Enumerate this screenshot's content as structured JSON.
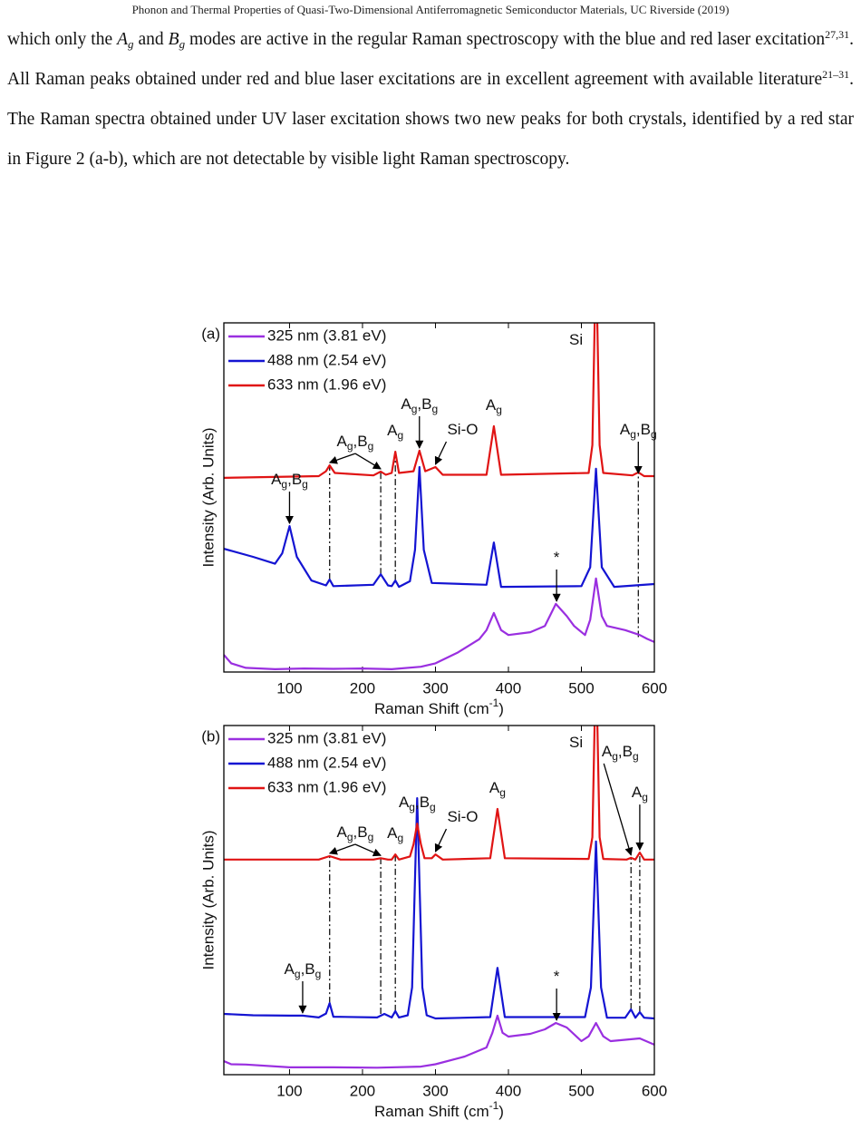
{
  "header": "Phonon and Thermal Properties of Quasi-Two-Dimensional Antiferromagnetic Semiconductor Materials, UC Riverside (2019)",
  "paragraph": {
    "runs": [
      {
        "text": "which only the "
      },
      {
        "italic": "A"
      },
      {
        "sub": "g"
      },
      {
        "text": " and "
      },
      {
        "italic": "B"
      },
      {
        "sub": "g"
      },
      {
        "text": " modes are active in the regular Raman spectroscopy with the blue and red laser excitation"
      },
      {
        "sup": "27,31"
      },
      {
        "text": ". All Raman peaks obtained under red and blue laser excitations are in excellent agreement with available literature"
      },
      {
        "sup": "21–31"
      },
      {
        "text": ". The Raman spectra obtained under UV laser excitation shows two new peaks for both crystals, identified by a red star in Figure 2 (a-b), which are not detectable by visible light Raman spectroscopy."
      }
    ]
  },
  "chart_data": [
    {
      "type": "line",
      "panel": "(a)",
      "xlabel": [
        {
          "base": "Raman Shift (cm",
          "sup": "-1"
        },
        {
          "base": ")"
        }
      ],
      "ylabel": "Intensity (Arb. Units)",
      "xlim": [
        10,
        600
      ],
      "ylim": [
        0,
        100
      ],
      "xticks": [
        100,
        200,
        300,
        400,
        500,
        600
      ],
      "legend": "upper left",
      "series": [
        {
          "name": "325 nm (3.81 eV)",
          "color": "#9a2fe0",
          "x": [
            10,
            20,
            40,
            80,
            120,
            160,
            200,
            240,
            280,
            300,
            330,
            360,
            370,
            380,
            390,
            400,
            430,
            450,
            465,
            480,
            490,
            505,
            512,
            520,
            528,
            535,
            560,
            580,
            590,
            600
          ],
          "values": [
            4.9,
            2.5,
            1.2,
            0.8,
            1,
            0.9,
            1,
            0.8,
            1.5,
            2.5,
            5.5,
            9.4,
            12,
            16.9,
            12,
            10.6,
            11.4,
            13.2,
            19.5,
            16,
            13.2,
            10.6,
            15,
            26.8,
            16,
            13.2,
            12,
            10.6,
            9.5,
            8.6
          ]
        },
        {
          "name": "488 nm (2.54 eV)",
          "color": "#1414d2",
          "x": [
            10,
            50,
            80,
            90,
            100,
            110,
            130,
            150,
            155,
            160,
            215,
            225,
            235,
            240,
            245,
            250,
            265,
            272,
            278,
            284,
            295,
            370,
            380,
            390,
            500,
            512,
            520,
            528,
            545,
            600
          ],
          "values": [
            35.3,
            33,
            31,
            34,
            41.8,
            33,
            26.2,
            24.8,
            26.5,
            24.6,
            25,
            28,
            24.8,
            24.6,
            26.2,
            24.4,
            26,
            35,
            58.7,
            35,
            25.5,
            25,
            37.1,
            24.4,
            24.6,
            30,
            58.2,
            30,
            24.4,
            25.2
          ]
        },
        {
          "name": "633 nm (1.96 eV)",
          "color": "#e01414",
          "x": [
            10,
            140,
            150,
            155,
            162,
            215,
            225,
            232,
            240,
            245,
            250,
            270,
            278,
            286,
            300,
            310,
            370,
            380,
            390,
            510,
            515,
            520,
            525,
            530,
            570,
            578,
            586,
            600
          ],
          "values": [
            55.6,
            56.1,
            57.5,
            59.2,
            57,
            56.3,
            57.4,
            56.5,
            57,
            63.1,
            57,
            57.5,
            63.4,
            57.5,
            58.7,
            56.5,
            56.5,
            70.4,
            56.5,
            57,
            65,
            120,
            65,
            57,
            56.3,
            57.2,
            56.1,
            56.1
          ]
        }
      ],
      "guides": [
        {
          "x": 155,
          "y": [
            26.5,
            59.2
          ]
        },
        {
          "x": 225,
          "y": [
            28,
            57.4
          ]
        },
        {
          "x": 245,
          "y": [
            26.2,
            63.1
          ]
        },
        {
          "x": 578,
          "y": [
            10,
            56.1
          ]
        }
      ],
      "annotations": [
        {
          "label": [
            {
              "base": "A",
              "sub": "g"
            },
            {
              "base": ",B",
              "sub": "g"
            }
          ],
          "xy": [
            [
              155,
              59.2
            ],
            [
              225,
              57.4
            ]
          ],
          "arrow": true
        },
        {
          "label": [
            {
              "base": "A",
              "sub": "g"
            }
          ],
          "xy": [
            [
              245,
              63.1
            ]
          ],
          "arrow": false
        },
        {
          "label": [
            {
              "base": "A",
              "sub": "g"
            },
            {
              "base": ",B",
              "sub": "g"
            }
          ],
          "xy": [
            [
              278,
              63.4
            ]
          ],
          "arrow": true
        },
        {
          "label": [
            {
              "base": "Si-O"
            }
          ],
          "xy": [
            [
              300,
              58.7
            ]
          ],
          "arrow": true
        },
        {
          "label": [
            {
              "base": "A",
              "sub": "g"
            }
          ],
          "xy": [
            [
              380,
              70.4
            ]
          ],
          "arrow": false
        },
        {
          "label": [
            {
              "base": "Si"
            }
          ],
          "xy": [
            [
              520,
              120
            ]
          ],
          "arrow": false
        },
        {
          "label": [
            {
              "base": "A",
              "sub": "g"
            },
            {
              "base": ",B",
              "sub": "g"
            }
          ],
          "xy": [
            [
              578,
              56.1
            ]
          ],
          "arrow": true
        },
        {
          "label": [
            {
              "base": "A",
              "sub": "g"
            },
            {
              "base": ",B",
              "sub": "g"
            }
          ],
          "xy": [
            [
              100,
              41.8
            ]
          ],
          "arrow": true
        },
        {
          "label": [
            {
              "base": "*"
            }
          ],
          "xy": [
            [
              466,
              19.5
            ]
          ],
          "arrow": true,
          "color": "#e01414"
        }
      ]
    },
    {
      "type": "line",
      "panel": "(b)",
      "xlabel": [
        {
          "base": "Raman Shift (cm",
          "sup": "-1"
        },
        {
          "base": ")"
        }
      ],
      "ylabel": "Intensity (Arb. Units)",
      "xlim": [
        10,
        600
      ],
      "ylim": [
        0,
        100
      ],
      "xticks": [
        100,
        200,
        300,
        400,
        500,
        600
      ],
      "legend": "upper left",
      "series": [
        {
          "name": "325 nm (3.81 eV)",
          "color": "#9a2fe0",
          "x": [
            10,
            20,
            40,
            100,
            160,
            220,
            280,
            300,
            340,
            370,
            378,
            385,
            392,
            400,
            430,
            450,
            465,
            480,
            500,
            510,
            520,
            530,
            540,
            560,
            580,
            600
          ],
          "values": [
            3.9,
            3,
            2.9,
            2.1,
            2.1,
            2,
            2.3,
            3,
            5.2,
            7.8,
            12,
            16.9,
            12,
            10.9,
            11.7,
            13,
            14.8,
            13.5,
            9.6,
            11,
            14.8,
            11,
            9.6,
            10,
            10.4,
            8.6
          ]
        },
        {
          "name": "488 nm (2.54 eV)",
          "color": "#1414d2",
          "x": [
            10,
            50,
            100,
            118,
            140,
            150,
            155,
            160,
            220,
            230,
            240,
            245,
            250,
            262,
            268,
            275,
            282,
            288,
            300,
            375,
            385,
            395,
            505,
            513,
            520,
            527,
            535,
            560,
            568,
            574,
            580,
            586,
            600
          ],
          "values": [
            17.4,
            17,
            16.9,
            16.9,
            16.4,
            17.5,
            20.5,
            16.6,
            16.4,
            17.4,
            16.4,
            18.2,
            16.4,
            17,
            25,
            79.2,
            25,
            17,
            16.1,
            16.5,
            30.6,
            16.5,
            16.5,
            25,
            66.8,
            25,
            16.3,
            16.3,
            18.7,
            16.3,
            17.9,
            16.3,
            16.1
          ]
        },
        {
          "name": "633 nm (1.96 eV)",
          "color": "#e01414",
          "x": [
            10,
            140,
            155,
            170,
            215,
            225,
            235,
            240,
            245,
            250,
            265,
            270,
            275,
            280,
            285,
            295,
            300,
            310,
            375,
            385,
            395,
            510,
            515,
            520,
            525,
            530,
            562,
            568,
            574,
            580,
            586,
            600
          ],
          "values": [
            61.6,
            61.6,
            62.6,
            61.6,
            61.6,
            62,
            61.6,
            61.6,
            63.1,
            61.6,
            62.5,
            66,
            71.9,
            66,
            62,
            62,
            63.1,
            61.6,
            62,
            76.1,
            62,
            61.8,
            68,
            120,
            68,
            61.8,
            61.6,
            62.1,
            61.6,
            63.6,
            61.6,
            61.6
          ]
        }
      ],
      "guides": [
        {
          "x": 155,
          "y": [
            20.5,
            62.6
          ]
        },
        {
          "x": 225,
          "y": [
            17.4,
            62
          ]
        },
        {
          "x": 245,
          "y": [
            18.2,
            63.1
          ]
        },
        {
          "x": 568,
          "y": [
            18.7,
            62.1
          ]
        },
        {
          "x": 580,
          "y": [
            17.9,
            63.6
          ]
        }
      ],
      "annotations": [
        {
          "label": [
            {
              "base": "A",
              "sub": "g"
            },
            {
              "base": ",B",
              "sub": "g"
            }
          ],
          "xy": [
            [
              155,
              62.6
            ],
            [
              225,
              62
            ]
          ],
          "arrow": true
        },
        {
          "label": [
            {
              "base": "A",
              "sub": "g"
            }
          ],
          "xy": [
            [
              245,
              63.1
            ]
          ],
          "arrow": false
        },
        {
          "label": [
            {
              "base": "A",
              "sub": "g"
            },
            {
              "base": ",B",
              "sub": "g"
            }
          ],
          "xy": [
            [
              275,
              71.9
            ]
          ],
          "arrow": false
        },
        {
          "label": [
            {
              "base": "Si-O"
            }
          ],
          "xy": [
            [
              300,
              63.1
            ]
          ],
          "arrow": true
        },
        {
          "label": [
            {
              "base": "A",
              "sub": "g"
            }
          ],
          "xy": [
            [
              385,
              76.1
            ]
          ],
          "arrow": false
        },
        {
          "label": [
            {
              "base": "Si"
            }
          ],
          "xy": [
            [
              520,
              120
            ]
          ],
          "arrow": false
        },
        {
          "label": [
            {
              "base": "A",
              "sub": "g"
            },
            {
              "base": ",B",
              "sub": "g"
            }
          ],
          "xy": [
            [
              568,
              62.1
            ]
          ],
          "arrow": true
        },
        {
          "label": [
            {
              "base": "A",
              "sub": "g"
            }
          ],
          "xy": [
            [
              580,
              63.6
            ]
          ],
          "arrow": true
        },
        {
          "label": [
            {
              "base": "A",
              "sub": "g"
            },
            {
              "base": ",B",
              "sub": "g"
            }
          ],
          "xy": [
            [
              118,
              16.9
            ]
          ],
          "arrow": true
        },
        {
          "label": [
            {
              "base": "*"
            }
          ],
          "xy": [
            [
              466,
              14.8
            ]
          ],
          "arrow": true,
          "color": "#e01414"
        }
      ]
    }
  ]
}
